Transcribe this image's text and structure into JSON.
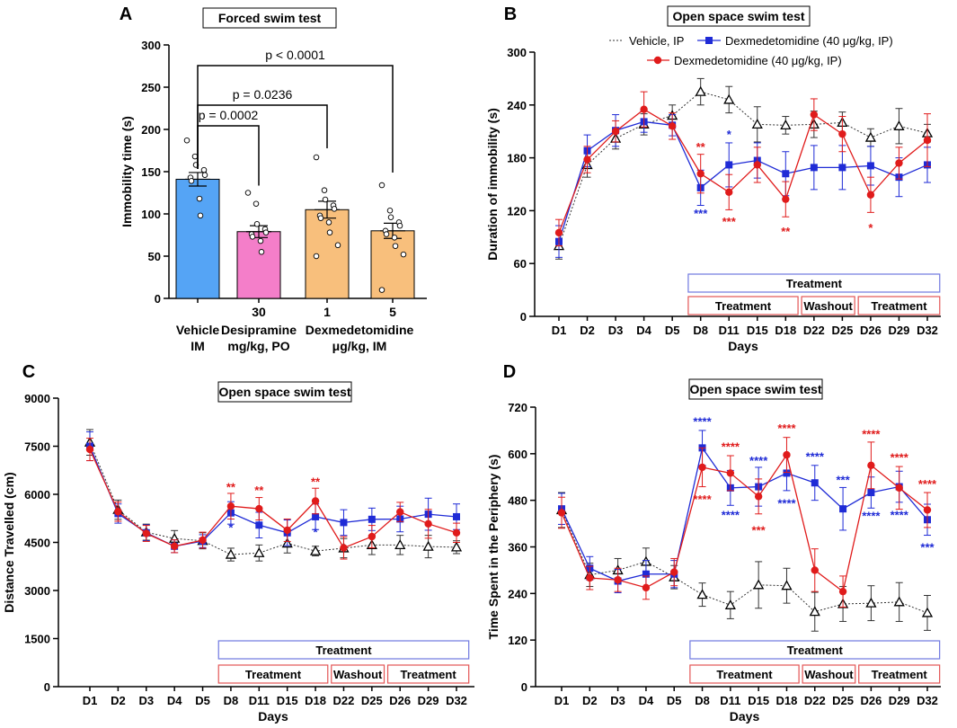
{
  "colors": {
    "vehicle_bar": "#55a4f5",
    "desipramine_bar": "#f47ec9",
    "dex_bar": "#f8bf7c",
    "vehicle_line": "#333333",
    "dex_blue": "#1f2bd6",
    "dex_red": "#e01b1b",
    "blue_star": "#1f2bd6",
    "red_star": "#e01b1b",
    "treatment_box_blue": "#6f78e0",
    "phase_box_red": "#e35555"
  },
  "chart_data": [
    {
      "id": "A",
      "type": "bar",
      "panel_letter": "A",
      "title": "Forced swim test",
      "ylabel": "Immobility time (s)",
      "xlabel": "",
      "ylim": [
        0,
        300
      ],
      "yticks": [
        0,
        50,
        100,
        150,
        200,
        250,
        300
      ],
      "yticks_labels": [
        "0",
        "50",
        "100",
        "150",
        "200",
        "250",
        "300"
      ],
      "categories": [
        {
          "dose": "",
          "label_line1": "Vehicle",
          "label_line2": "IM",
          "mean": 141,
          "sem": 8,
          "color": "vehicle_bar",
          "points": [
            187,
            168,
            158,
            152,
            146,
            143,
            139,
            118,
            98
          ]
        },
        {
          "dose": "30",
          "label_line1": "",
          "label_line2": "",
          "mean": 79,
          "sem": 7,
          "color": "desipramine_bar",
          "points": [
            125,
            112,
            88,
            82,
            78,
            76,
            73,
            68,
            55
          ]
        },
        {
          "dose": "1",
          "label_line1": "",
          "label_line2": "",
          "mean": 105,
          "sem": 10,
          "color": "dex_bar",
          "points": [
            167,
            128,
            117,
            110,
            106,
            98,
            95,
            90,
            78,
            63,
            50
          ]
        },
        {
          "dose": "5",
          "label_line1": "",
          "label_line2": "",
          "mean": 80,
          "sem": 9,
          "color": "dex_bar",
          "points": [
            134,
            104,
            96,
            90,
            86,
            80,
            76,
            72,
            62,
            52,
            10
          ]
        }
      ],
      "group_labels": [
        {
          "line1": "Desipramine",
          "line2": "mg/kg, PO"
        },
        {
          "line1": "Dexmedetomidine",
          "line2": "μg/kg, IM"
        }
      ],
      "comparisons": [
        {
          "label": "p = 0.0002",
          "from": 0,
          "to": 1
        },
        {
          "label": "p = 0.0236",
          "from": 0,
          "to": 2
        },
        {
          "label": "p < 0.0001",
          "from": 0,
          "to": 3
        }
      ]
    },
    {
      "id": "B",
      "type": "line",
      "panel_letter": "B",
      "title": "Open space swim test",
      "ylabel": "Duration of immobility (s)",
      "xlabel": "Days",
      "ylim": [
        0,
        300
      ],
      "yticks": [
        0,
        60,
        120,
        180,
        240,
        300
      ],
      "yticks_labels": [
        "0",
        "60",
        "120",
        "180",
        "240",
        "300"
      ],
      "categories": [
        "D1",
        "D2",
        "D3",
        "D4",
        "D5",
        "D8",
        "D11",
        "D15",
        "D18",
        "D22",
        "D25",
        "D26",
        "D29",
        "D32"
      ],
      "legend": [
        "Vehicle, IP",
        "Dexmedetomidine (40 μg/kg, IP)",
        "Dexmedetomidine (40 μg/kg, IP)"
      ],
      "series": [
        {
          "name": "Vehicle, IP",
          "style": "vehicle",
          "values": [
            80,
            172,
            202,
            218,
            228,
            255,
            246,
            218,
            217,
            218,
            220,
            203,
            216,
            208
          ],
          "errors": [
            15,
            14,
            12,
            12,
            12,
            15,
            15,
            20,
            10,
            15,
            12,
            10,
            20,
            10
          ]
        },
        {
          "name": "Dexmedetomidine (40 μg/kg, IP) blue",
          "style": "blue",
          "values": [
            85,
            188,
            211,
            221,
            217,
            146,
            172,
            177,
            162,
            169,
            169,
            171,
            158,
            172
          ],
          "errors": [
            18,
            18,
            18,
            12,
            12,
            20,
            25,
            20,
            25,
            25,
            25,
            22,
            22,
            20
          ]
        },
        {
          "name": "Dexmedetomidine (40 μg/kg, IP) red",
          "style": "red",
          "values": [
            95,
            178,
            210,
            235,
            216,
            162,
            141,
            172,
            133,
            229,
            207,
            138,
            174,
            200
          ],
          "errors": [
            15,
            15,
            12,
            20,
            15,
            22,
            20,
            20,
            20,
            18,
            20,
            20,
            18,
            30
          ]
        }
      ],
      "stars": [
        {
          "index": 5,
          "text": "**",
          "color": "red_star",
          "value": 188
        },
        {
          "index": 5,
          "text": "***",
          "color": "blue_star",
          "value": 112
        },
        {
          "index": 6,
          "text": "*",
          "color": "blue_star",
          "value": 202
        },
        {
          "index": 6,
          "text": "***",
          "color": "red_star",
          "value": 103
        },
        {
          "index": 8,
          "text": "**",
          "color": "red_star",
          "value": 92
        },
        {
          "index": 11,
          "text": "*",
          "color": "red_star",
          "value": 96
        }
      ],
      "phases": {
        "treatment_all": {
          "label": "Treatment",
          "from": 5,
          "to": 13
        },
        "segments": [
          {
            "label": "Treatment",
            "from": 5,
            "to": 8
          },
          {
            "label": "Washout",
            "from": 9,
            "to": 10
          },
          {
            "label": "Treatment",
            "from": 11,
            "to": 13
          }
        ]
      }
    },
    {
      "id": "C",
      "type": "line",
      "panel_letter": "C",
      "title": "Open space swim test",
      "ylabel": "Distance Travelled (cm)",
      "xlabel": "Days",
      "ylim": [
        0,
        9000
      ],
      "yticks": [
        0,
        1500,
        3000,
        4500,
        6000,
        7500,
        9000
      ],
      "yticks_labels": [
        "0",
        "1500",
        "3000",
        "4500",
        "6000",
        "7500",
        "9000"
      ],
      "categories": [
        "D1",
        "D2",
        "D3",
        "D4",
        "D5",
        "D8",
        "D11",
        "D15",
        "D18",
        "D22",
        "D25",
        "D26",
        "D29",
        "D32"
      ],
      "series": [
        {
          "name": "Vehicle, IP",
          "style": "vehicle",
          "values": [
            7620,
            5520,
            4820,
            4620,
            4550,
            4120,
            4170,
            4470,
            4230,
            4320,
            4420,
            4420,
            4370,
            4350
          ],
          "errors": [
            400,
            300,
            250,
            250,
            250,
            200,
            250,
            300,
            150,
            300,
            300,
            300,
            350,
            200
          ]
        },
        {
          "name": "Dexmedetomidine (40 μg/kg, IP) blue",
          "style": "blue",
          "values": [
            7500,
            5400,
            4800,
            4380,
            4540,
            5420,
            5040,
            4800,
            5300,
            5120,
            5220,
            5230,
            5380,
            5300
          ],
          "errors": [
            450,
            300,
            250,
            200,
            200,
            350,
            400,
            400,
            400,
            400,
            350,
            400,
            500,
            400
          ]
        },
        {
          "name": "Dexmedetomidine (40 μg/kg, IP) red",
          "style": "red",
          "values": [
            7400,
            5460,
            4780,
            4380,
            4570,
            5630,
            5550,
            4880,
            5790,
            4330,
            4680,
            5450,
            5080,
            4800
          ],
          "errors": [
            350,
            300,
            250,
            200,
            250,
            400,
            350,
            350,
            400,
            350,
            350,
            300,
            450,
            300
          ]
        }
      ],
      "stars": [
        {
          "index": 5,
          "text": "**",
          "color": "red_star",
          "value": 6100
        },
        {
          "index": 5,
          "text": "*",
          "color": "blue_star",
          "value": 4840
        },
        {
          "index": 6,
          "text": "**",
          "color": "red_star",
          "value": 6000
        },
        {
          "index": 8,
          "text": "**",
          "color": "red_star",
          "value": 6260
        },
        {
          "index": 8,
          "text": "*",
          "color": "blue_star",
          "value": 4700
        }
      ],
      "phases": {
        "treatment_all": {
          "label": "Treatment",
          "from": 5,
          "to": 13
        },
        "segments": [
          {
            "label": "Treatment",
            "from": 5,
            "to": 8
          },
          {
            "label": "Washout",
            "from": 9,
            "to": 10
          },
          {
            "label": "Treatment",
            "from": 11,
            "to": 13
          }
        ]
      }
    },
    {
      "id": "D",
      "type": "line",
      "panel_letter": "D",
      "title": "Open space swim test",
      "ylabel": "Time Spent in the Periphery (s)",
      "xlabel": "Days",
      "ylim": [
        0,
        720
      ],
      "yticks": [
        0,
        120,
        240,
        360,
        480,
        600,
        720
      ],
      "yticks_labels": [
        "0",
        "120",
        "240",
        "360",
        "480",
        "600",
        "720"
      ],
      "categories": [
        "D1",
        "D2",
        "D3",
        "D4",
        "D5",
        "D8",
        "D11",
        "D15",
        "D18",
        "D22",
        "D25",
        "D26",
        "D29",
        "D32"
      ],
      "series": [
        {
          "name": "Vehicle, IP",
          "style": "vehicle",
          "values": [
            455,
            288,
            300,
            322,
            282,
            237,
            210,
            262,
            260,
            193,
            213,
            215,
            218,
            190
          ],
          "errors": [
            45,
            30,
            30,
            35,
            30,
            30,
            35,
            60,
            45,
            50,
            45,
            45,
            50,
            45
          ]
        },
        {
          "name": "Dexmedetomidine (40 μg/kg, IP) blue",
          "style": "blue",
          "values": [
            458,
            305,
            272,
            290,
            290,
            615,
            512,
            515,
            550,
            525,
            458,
            500,
            515,
            430
          ],
          "errors": [
            40,
            30,
            30,
            35,
            35,
            45,
            45,
            50,
            45,
            45,
            55,
            40,
            40,
            40
          ]
        },
        {
          "name": "Dexmedetomidine (40 μg/kg, IP) red",
          "style": "red",
          "values": [
            448,
            280,
            275,
            255,
            295,
            565,
            550,
            490,
            597,
            300,
            245,
            570,
            512,
            455
          ],
          "errors": [
            40,
            30,
            30,
            30,
            35,
            50,
            45,
            45,
            45,
            55,
            40,
            60,
            55,
            45
          ]
        }
      ],
      "stars": [
        {
          "index": 5,
          "text": "****",
          "color": "blue_star",
          "value": 672
        },
        {
          "index": 5,
          "text": "****",
          "color": "red_star",
          "value": 472
        },
        {
          "index": 6,
          "text": "****",
          "color": "red_star",
          "value": 608
        },
        {
          "index": 6,
          "text": "****",
          "color": "blue_star",
          "value": 432
        },
        {
          "index": 7,
          "text": "****",
          "color": "blue_star",
          "value": 572
        },
        {
          "index": 7,
          "text": "***",
          "color": "red_star",
          "value": 392
        },
        {
          "index": 8,
          "text": "****",
          "color": "red_star",
          "value": 655
        },
        {
          "index": 8,
          "text": "****",
          "color": "blue_star",
          "value": 462
        },
        {
          "index": 9,
          "text": "****",
          "color": "blue_star",
          "value": 582
        },
        {
          "index": 10,
          "text": "***",
          "color": "blue_star",
          "value": 522
        },
        {
          "index": 11,
          "text": "****",
          "color": "red_star",
          "value": 640
        },
        {
          "index": 11,
          "text": "****",
          "color": "blue_star",
          "value": 430
        },
        {
          "index": 12,
          "text": "****",
          "color": "red_star",
          "value": 580
        },
        {
          "index": 12,
          "text": "****",
          "color": "blue_star",
          "value": 432
        },
        {
          "index": 13,
          "text": "****",
          "color": "red_star",
          "value": 512
        },
        {
          "index": 13,
          "text": "***",
          "color": "blue_star",
          "value": 348
        }
      ],
      "phases": {
        "treatment_all": {
          "label": "Treatment",
          "from": 5,
          "to": 13
        },
        "segments": [
          {
            "label": "Treatment",
            "from": 5,
            "to": 8
          },
          {
            "label": "Washout",
            "from": 9,
            "to": 10
          },
          {
            "label": "Treatment",
            "from": 11,
            "to": 13
          }
        ]
      }
    }
  ]
}
